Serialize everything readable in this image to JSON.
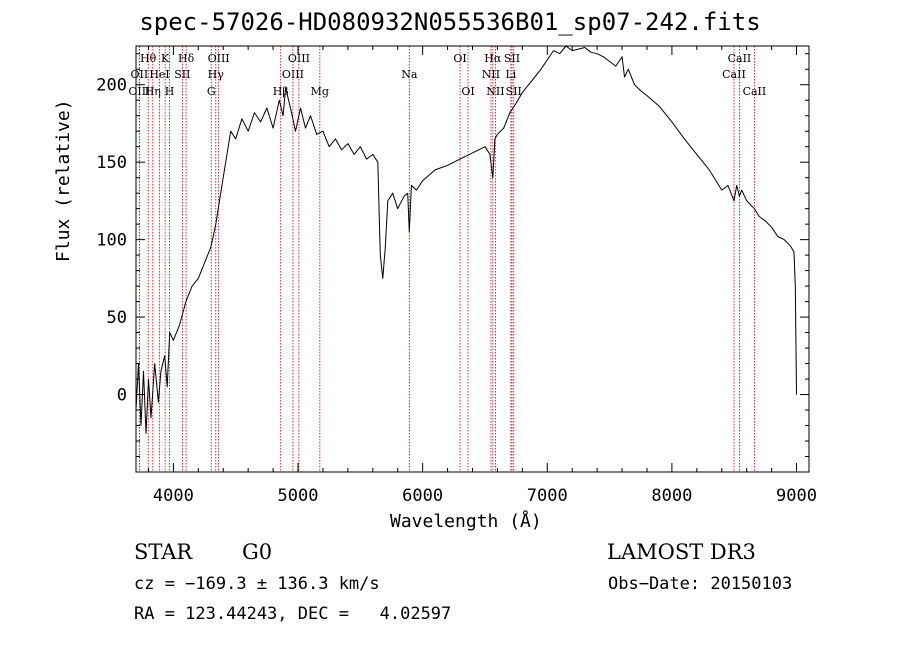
{
  "chart_data": {
    "type": "line",
    "title": "spec-57026-HD080932N055536B01_sp07-242.fits",
    "xlabel": "Wavelength (Å)",
    "ylabel": "Flux (relative)",
    "xlim": [
      3700,
      9100
    ],
    "ylim": [
      -50,
      225
    ],
    "x_ticks": [
      4000,
      5000,
      6000,
      7000,
      8000,
      9000
    ],
    "y_ticks": [
      0,
      50,
      100,
      150,
      200
    ],
    "x_tick_labels": [
      "4000",
      "5000",
      "6000",
      "7000",
      "8000",
      "9000"
    ],
    "y_tick_labels": [
      "0",
      "50",
      "100",
      "150",
      "200"
    ],
    "grid": false,
    "series": [
      {
        "x": [
          3700,
          3720,
          3740,
          3760,
          3780,
          3800,
          3820,
          3850,
          3880,
          3900,
          3930,
          3950,
          3970,
          4000,
          4050,
          4100,
          4150,
          4200,
          4250,
          4300,
          4340,
          4380,
          4420,
          4460,
          4500,
          4550,
          4600,
          4650,
          4700,
          4750,
          4800,
          4850,
          4880,
          4900,
          4940,
          4980,
          5020,
          5060,
          5100,
          5150,
          5200,
          5250,
          5300,
          5350,
          5400,
          5450,
          5500,
          5550,
          5600,
          5640,
          5660,
          5680,
          5690,
          5700,
          5720,
          5760,
          5800,
          5850,
          5880,
          5893,
          5910,
          5950,
          6000,
          6100,
          6200,
          6300,
          6400,
          6500,
          6540,
          6563,
          6580,
          6600,
          6650,
          6700,
          6750,
          6800,
          6850,
          6900,
          6950,
          7000,
          7050,
          7100,
          7150,
          7200,
          7250,
          7300,
          7350,
          7400,
          7450,
          7500,
          7550,
          7600,
          7620,
          7650,
          7700,
          7750,
          7800,
          7900,
          8000,
          8100,
          8200,
          8300,
          8400,
          8450,
          8498,
          8520,
          8542,
          8560,
          8600,
          8662,
          8700,
          8750,
          8800,
          8850,
          8900,
          8950,
          8980,
          8990,
          9000
        ],
        "y": [
          -10,
          20,
          -20,
          15,
          -25,
          10,
          -15,
          20,
          -5,
          15,
          25,
          5,
          40,
          35,
          45,
          60,
          70,
          75,
          85,
          95,
          110,
          130,
          150,
          170,
          165,
          178,
          170,
          182,
          176,
          185,
          172,
          190,
          180,
          198,
          185,
          170,
          185,
          172,
          180,
          168,
          170,
          160,
          165,
          158,
          162,
          155,
          160,
          152,
          155,
          150,
          90,
          75,
          85,
          95,
          125,
          130,
          120,
          128,
          130,
          105,
          135,
          132,
          138,
          145,
          148,
          152,
          156,
          160,
          155,
          140,
          165,
          168,
          172,
          182,
          188,
          195,
          200,
          205,
          210,
          216,
          222,
          220,
          225,
          222,
          223,
          224,
          221,
          220,
          218,
          215,
          212,
          218,
          205,
          210,
          200,
          196,
          193,
          186,
          176,
          165,
          155,
          145,
          132,
          135,
          125,
          135,
          128,
          132,
          125,
          120,
          115,
          112,
          108,
          102,
          100,
          96,
          92,
          70,
          0
        ]
      }
    ],
    "spectral_lines": [
      {
        "name": "Hθ",
        "x": 3798,
        "row": 1
      },
      {
        "name": "OII",
        "x": 3727,
        "row": 2
      },
      {
        "name": "OIII",
        "x": 3727,
        "row": 3
      },
      {
        "name": "K",
        "x": 3934,
        "row": 1
      },
      {
        "name": "HeI",
        "x": 3889,
        "row": 2
      },
      {
        "name": "Hη",
        "x": 3835,
        "row": 3
      },
      {
        "name": "H",
        "x": 3969,
        "row": 3
      },
      {
        "name": "Hδ",
        "x": 4102,
        "row": 1
      },
      {
        "name": "SII",
        "x": 4072,
        "row": 2
      },
      {
        "name": "OIII",
        "x": 4363,
        "row": 1
      },
      {
        "name": "Hγ",
        "x": 4340,
        "row": 2
      },
      {
        "name": "G",
        "x": 4304,
        "row": 3
      },
      {
        "name": "Hβ",
        "x": 4861,
        "row": 3
      },
      {
        "name": "OIII",
        "x": 5007,
        "row": 1
      },
      {
        "name": "OIII",
        "x": 4959,
        "row": 2
      },
      {
        "name": "Mg",
        "x": 5175,
        "row": 3
      },
      {
        "name": "Na",
        "x": 5893,
        "row": 2
      },
      {
        "name": "OI",
        "x": 6300,
        "row": 1
      },
      {
        "name": "OI",
        "x": 6364,
        "row": 3
      },
      {
        "name": "Hα",
        "x": 6563,
        "row": 1
      },
      {
        "name": "NII",
        "x": 6548,
        "row": 2
      },
      {
        "name": "NII",
        "x": 6584,
        "row": 3
      },
      {
        "name": "SII",
        "x": 6717,
        "row": 1
      },
      {
        "name": "Li",
        "x": 6708,
        "row": 2
      },
      {
        "name": "SII",
        "x": 6731,
        "row": 3
      },
      {
        "name": "CaII",
        "x": 8542,
        "row": 1
      },
      {
        "name": "CaII",
        "x": 8498,
        "row": 2
      },
      {
        "name": "CaII",
        "x": 8662,
        "row": 3
      }
    ]
  },
  "info": {
    "object_class": "STAR",
    "subclass": "G0",
    "survey": "LAMOST DR3",
    "cz": "cz = −169.3 ± 136.3 km/s",
    "obs_date": "Obs−Date: 20150103",
    "coords": "RA = 123.44243, DEC =   4.02597"
  },
  "colors": {
    "spectrum": "#000000",
    "line_markers": "#cc0000",
    "axes": "#000000"
  }
}
